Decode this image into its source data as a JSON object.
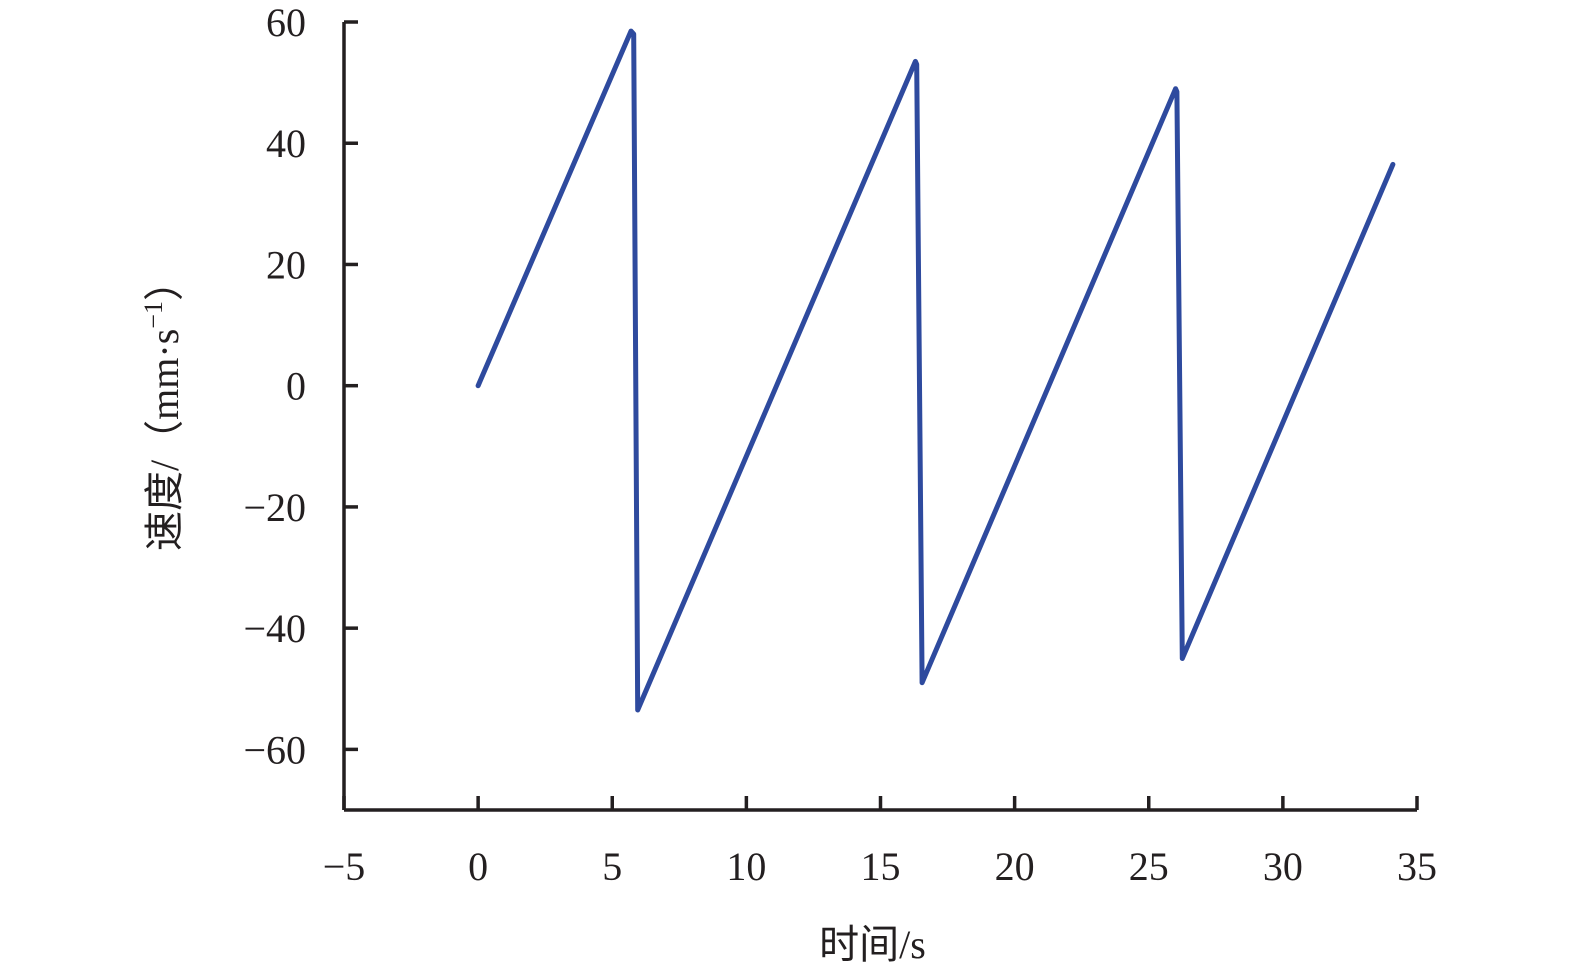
{
  "chart_data": {
    "type": "line",
    "title": "",
    "xlabel": "时间/s",
    "ylabel": "速度/（mm·s",
    "ylabel_superscript": "−1",
    "ylabel_close": "）",
    "xlim": [
      -5,
      35
    ],
    "ylim": [
      -70,
      60
    ],
    "x_ticks": [
      -5,
      0,
      5,
      10,
      15,
      20,
      25,
      30,
      35
    ],
    "x_tick_labels": [
      "−5",
      "0",
      "5",
      "10",
      "15",
      "20",
      "25",
      "30",
      "35"
    ],
    "y_ticks": [
      60,
      40,
      20,
      0,
      -20,
      -40,
      -60
    ],
    "y_tick_labels": [
      "60",
      "40",
      "20",
      "0",
      "−20",
      "−40",
      "−60"
    ],
    "grid": false,
    "legend": "none",
    "series": [
      {
        "color": "#2e4a9e",
        "x": [
          0.0,
          5.7,
          5.8,
          5.95,
          16.3,
          16.35,
          16.55,
          26.0,
          26.05,
          26.25,
          34.1
        ],
        "y": [
          0.0,
          58.5,
          58.0,
          -53.5,
          53.5,
          53.0,
          -49.0,
          49.0,
          48.5,
          -45.0,
          36.5
        ]
      }
    ]
  }
}
